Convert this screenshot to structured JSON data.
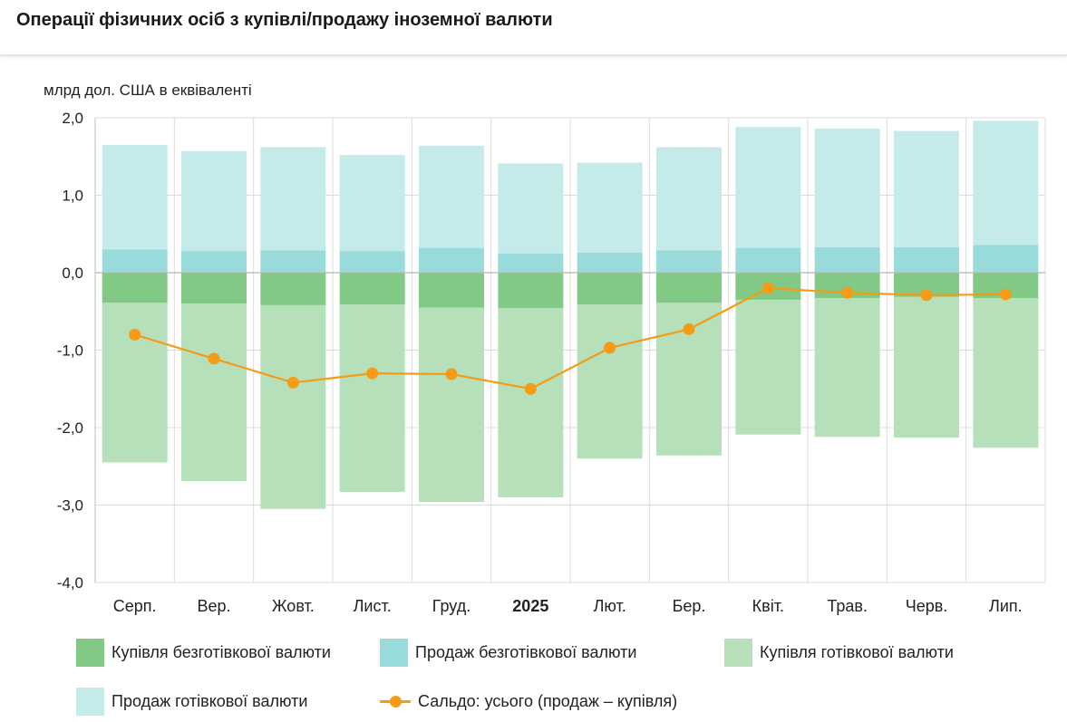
{
  "title": "Операції фізичних осіб з купівлі/продажу іноземної валюти",
  "chart_data": {
    "type": "bar",
    "stacked": true,
    "ylabel": "млрд дол. США в еквіваленті",
    "ylim": [
      -4.0,
      2.0
    ],
    "yticks": [
      2.0,
      1.0,
      0.0,
      -1.0,
      -2.0,
      -3.0,
      -4.0
    ],
    "ytick_labels": [
      "2,0",
      "1,0",
      "0,0",
      "-1,0",
      "-2,0",
      "-3,0",
      "-4,0"
    ],
    "categories": [
      "Серп.",
      "Вер.",
      "Жовт.",
      "Лист.",
      "Груд.",
      "2025",
      "Лют.",
      "Бер.",
      "Квіт.",
      "Трав.",
      "Черв.",
      "Лип."
    ],
    "bold_categories": [
      "2025"
    ],
    "series": [
      {
        "name": "Купівля безготівкової валюти",
        "kind": "bar",
        "color": "#83c986",
        "values": [
          -0.39,
          -0.4,
          -0.42,
          -0.41,
          -0.45,
          -0.46,
          -0.41,
          -0.39,
          -0.35,
          -0.33,
          -0.31,
          -0.33
        ]
      },
      {
        "name": "Продаж безготівкової валюти",
        "kind": "bar",
        "color": "#99dada",
        "values": [
          0.3,
          0.28,
          0.29,
          0.28,
          0.32,
          0.25,
          0.26,
          0.29,
          0.32,
          0.33,
          0.33,
          0.36
        ]
      },
      {
        "name": "Купівля готівкової валюти",
        "kind": "bar",
        "color": "#b5e0ba",
        "values": [
          -2.06,
          -2.29,
          -2.63,
          -2.42,
          -2.51,
          -2.44,
          -1.99,
          -1.97,
          -1.74,
          -1.79,
          -1.82,
          -1.93
        ]
      },
      {
        "name": "Продаж готівкової валюти",
        "kind": "bar",
        "color": "#c4eaea",
        "values": [
          1.35,
          1.29,
          1.33,
          1.24,
          1.32,
          1.16,
          1.16,
          1.33,
          1.56,
          1.53,
          1.5,
          1.6
        ]
      },
      {
        "name": "Сальдо: усього (продаж – купівля)",
        "kind": "line",
        "color": "#f59b15",
        "values": [
          -0.8,
          -1.11,
          -1.42,
          -1.3,
          -1.31,
          -1.5,
          -0.97,
          -0.73,
          -0.2,
          -0.26,
          -0.29,
          -0.28
        ]
      }
    ],
    "grid": true,
    "legend_position": "bottom"
  }
}
